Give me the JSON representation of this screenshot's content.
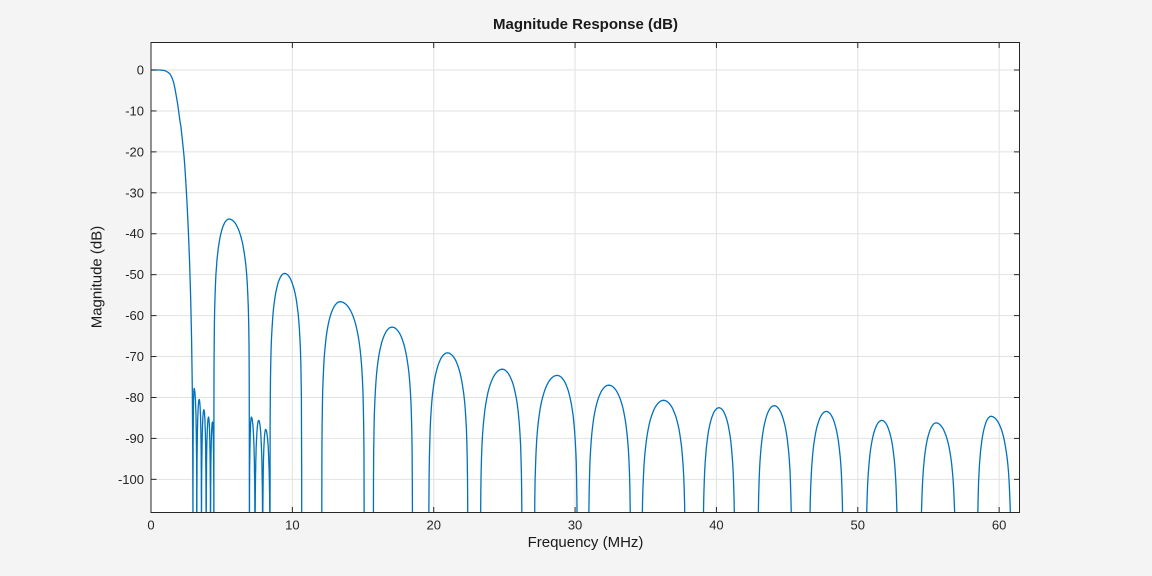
{
  "figure": {
    "background": "#f4f4f4",
    "plot_background": "#ffffff",
    "grid_color": "#e2e2e2",
    "axis_color": "#262626",
    "text_color": "#1a1a1a"
  },
  "chart_data": {
    "type": "line",
    "title": "Magnitude Response (dB)",
    "xlabel": "Frequency (MHz)",
    "ylabel": "Magnitude (dB)",
    "xlim": [
      0,
      61.44
    ],
    "ylim": [
      -108.1,
      6.72
    ],
    "xticks": [
      0,
      10,
      20,
      30,
      40,
      50,
      60
    ],
    "yticks": [
      0,
      -10,
      -20,
      -30,
      -40,
      -50,
      -60,
      -70,
      -80,
      -90,
      -100
    ],
    "grid": true,
    "legend": null,
    "line_color": "#0072BD",
    "response_model": {
      "description": "Lowpass decimation-filter magnitude response: flat 0 dB passband, steep transition near 2-3 MHz, then stopband sidelobes. Each sidelobe is given by its null frequencies and peak (MHz, dB).",
      "passband_points": [
        [
          0,
          0
        ],
        [
          0.4,
          0
        ],
        [
          0.6,
          0
        ],
        [
          0.75,
          -0.05
        ],
        [
          0.9,
          -0.1
        ],
        [
          1.05,
          -0.25
        ],
        [
          1.2,
          -0.55
        ],
        [
          1.35,
          -1
        ],
        [
          1.5,
          -2
        ],
        [
          1.6,
          -3
        ],
        [
          1.7,
          -4.6
        ],
        [
          1.8,
          -6.5
        ],
        [
          1.88,
          -8.2
        ],
        [
          1.95,
          -10
        ],
        [
          2.05,
          -12.5
        ],
        [
          2.12,
          -14
        ],
        [
          2.2,
          -16.5
        ],
        [
          2.28,
          -19
        ],
        [
          2.35,
          -21.5
        ],
        [
          2.42,
          -25
        ],
        [
          2.48,
          -28.5
        ],
        [
          2.54,
          -32
        ],
        [
          2.64,
          -39
        ],
        [
          2.73,
          -47
        ],
        [
          2.81,
          -56
        ],
        [
          2.87,
          -66
        ],
        [
          2.92,
          -78
        ],
        [
          2.95,
          -92
        ],
        [
          2.97,
          -112
        ]
      ],
      "sidelobes": [
        {
          "null_start": 2.97,
          "peak_x": 3.05,
          "peak_db": -77.8,
          "null_end": 3.24
        },
        {
          "null_start": 3.24,
          "peak_x": 3.41,
          "peak_db": -80.5,
          "null_end": 3.57
        },
        {
          "null_start": 3.57,
          "peak_x": 3.74,
          "peak_db": -83.0,
          "null_end": 3.9
        },
        {
          "null_start": 3.9,
          "peak_x": 4.07,
          "peak_db": -84.8,
          "null_end": 4.21
        },
        {
          "null_start": 4.21,
          "peak_x": 4.35,
          "peak_db": -86.0,
          "null_end": 4.45
        },
        {
          "null_start": 4.45,
          "peak_x": 5.52,
          "peak_db": -36.4,
          "null_end": 6.96
        },
        {
          "null_start": 6.96,
          "peak_x": 7.1,
          "peak_db": -84.8,
          "null_end": 7.36
        },
        {
          "null_start": 7.36,
          "peak_x": 7.62,
          "peak_db": -85.6,
          "null_end": 7.9
        },
        {
          "null_start": 7.9,
          "peak_x": 8.11,
          "peak_db": -87.8,
          "null_end": 8.42
        },
        {
          "null_start": 8.42,
          "peak_x": 9.45,
          "peak_db": -49.7,
          "null_end": 10.66
        },
        {
          "null_start": 12.08,
          "peak_x": 13.38,
          "peak_db": -56.6,
          "null_end": 15.08
        },
        {
          "null_start": 15.73,
          "peak_x": 17.05,
          "peak_db": -62.8,
          "null_end": 18.5
        },
        {
          "null_start": 19.65,
          "peak_x": 20.97,
          "peak_db": -69.1,
          "null_end": 22.42
        },
        {
          "null_start": 23.3,
          "peak_x": 24.85,
          "peak_db": -73.1,
          "null_end": 26.25
        },
        {
          "null_start": 27.12,
          "peak_x": 28.73,
          "peak_db": -74.6,
          "null_end": 30.16
        },
        {
          "null_start": 30.95,
          "peak_x": 32.38,
          "peak_db": -77.0,
          "null_end": 33.93
        },
        {
          "null_start": 34.72,
          "peak_x": 36.26,
          "peak_db": -80.7,
          "null_end": 37.8
        },
        {
          "null_start": 39.05,
          "peak_x": 40.18,
          "peak_db": -82.5,
          "null_end": 41.3
        },
        {
          "null_start": 42.93,
          "peak_x": 44.08,
          "peak_db": -82.0,
          "null_end": 45.33
        },
        {
          "null_start": 46.58,
          "peak_x": 47.77,
          "peak_db": -83.4,
          "null_end": 48.97
        },
        {
          "null_start": 50.58,
          "peak_x": 51.7,
          "peak_db": -85.6,
          "null_end": 52.82
        },
        {
          "null_start": 54.45,
          "peak_x": 55.54,
          "peak_db": -86.2,
          "null_end": 56.92
        },
        {
          "null_start": 58.45,
          "peak_x": 59.42,
          "peak_db": -84.6,
          "null_end": 60.85
        }
      ]
    }
  }
}
